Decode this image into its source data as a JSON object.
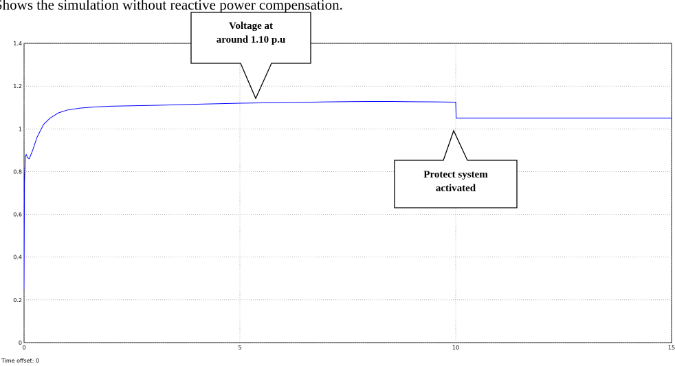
{
  "caption": "Shows the simulation without reactive power compensation.",
  "footer": "Time offset:  0",
  "chart_data": {
    "type": "line",
    "color": "#0000ff",
    "x": [
      0,
      0.01,
      0.03,
      0.05,
      0.08,
      0.12,
      0.2,
      0.3,
      0.45,
      0.6,
      0.8,
      1.0,
      1.3,
      1.6,
      2.0,
      2.5,
      3,
      4,
      5,
      6,
      7,
      8,
      8.5,
      9,
      10,
      10.01,
      11,
      12,
      13,
      14,
      15
    ],
    "values": [
      0.25,
      0.75,
      0.87,
      0.88,
      0.865,
      0.86,
      0.9,
      0.96,
      1.02,
      1.05,
      1.075,
      1.088,
      1.097,
      1.102,
      1.106,
      1.108,
      1.11,
      1.115,
      1.12,
      1.123,
      1.126,
      1.128,
      1.128,
      1.127,
      1.125,
      1.05,
      1.05,
      1.05,
      1.05,
      1.05,
      1.05
    ],
    "xlim": [
      0,
      15
    ],
    "xticks": [
      0,
      5,
      10,
      15
    ],
    "ylim": [
      0,
      1.4
    ],
    "yticks": [
      0,
      0.2,
      0.4,
      0.6,
      0.8,
      1,
      1.2,
      1.4
    ],
    "grid": true,
    "annotations": [
      {
        "lines": [
          "Voltage at",
          "around 1.10 p.u"
        ]
      },
      {
        "lines": [
          "Protect system",
          "activated"
        ]
      }
    ]
  }
}
